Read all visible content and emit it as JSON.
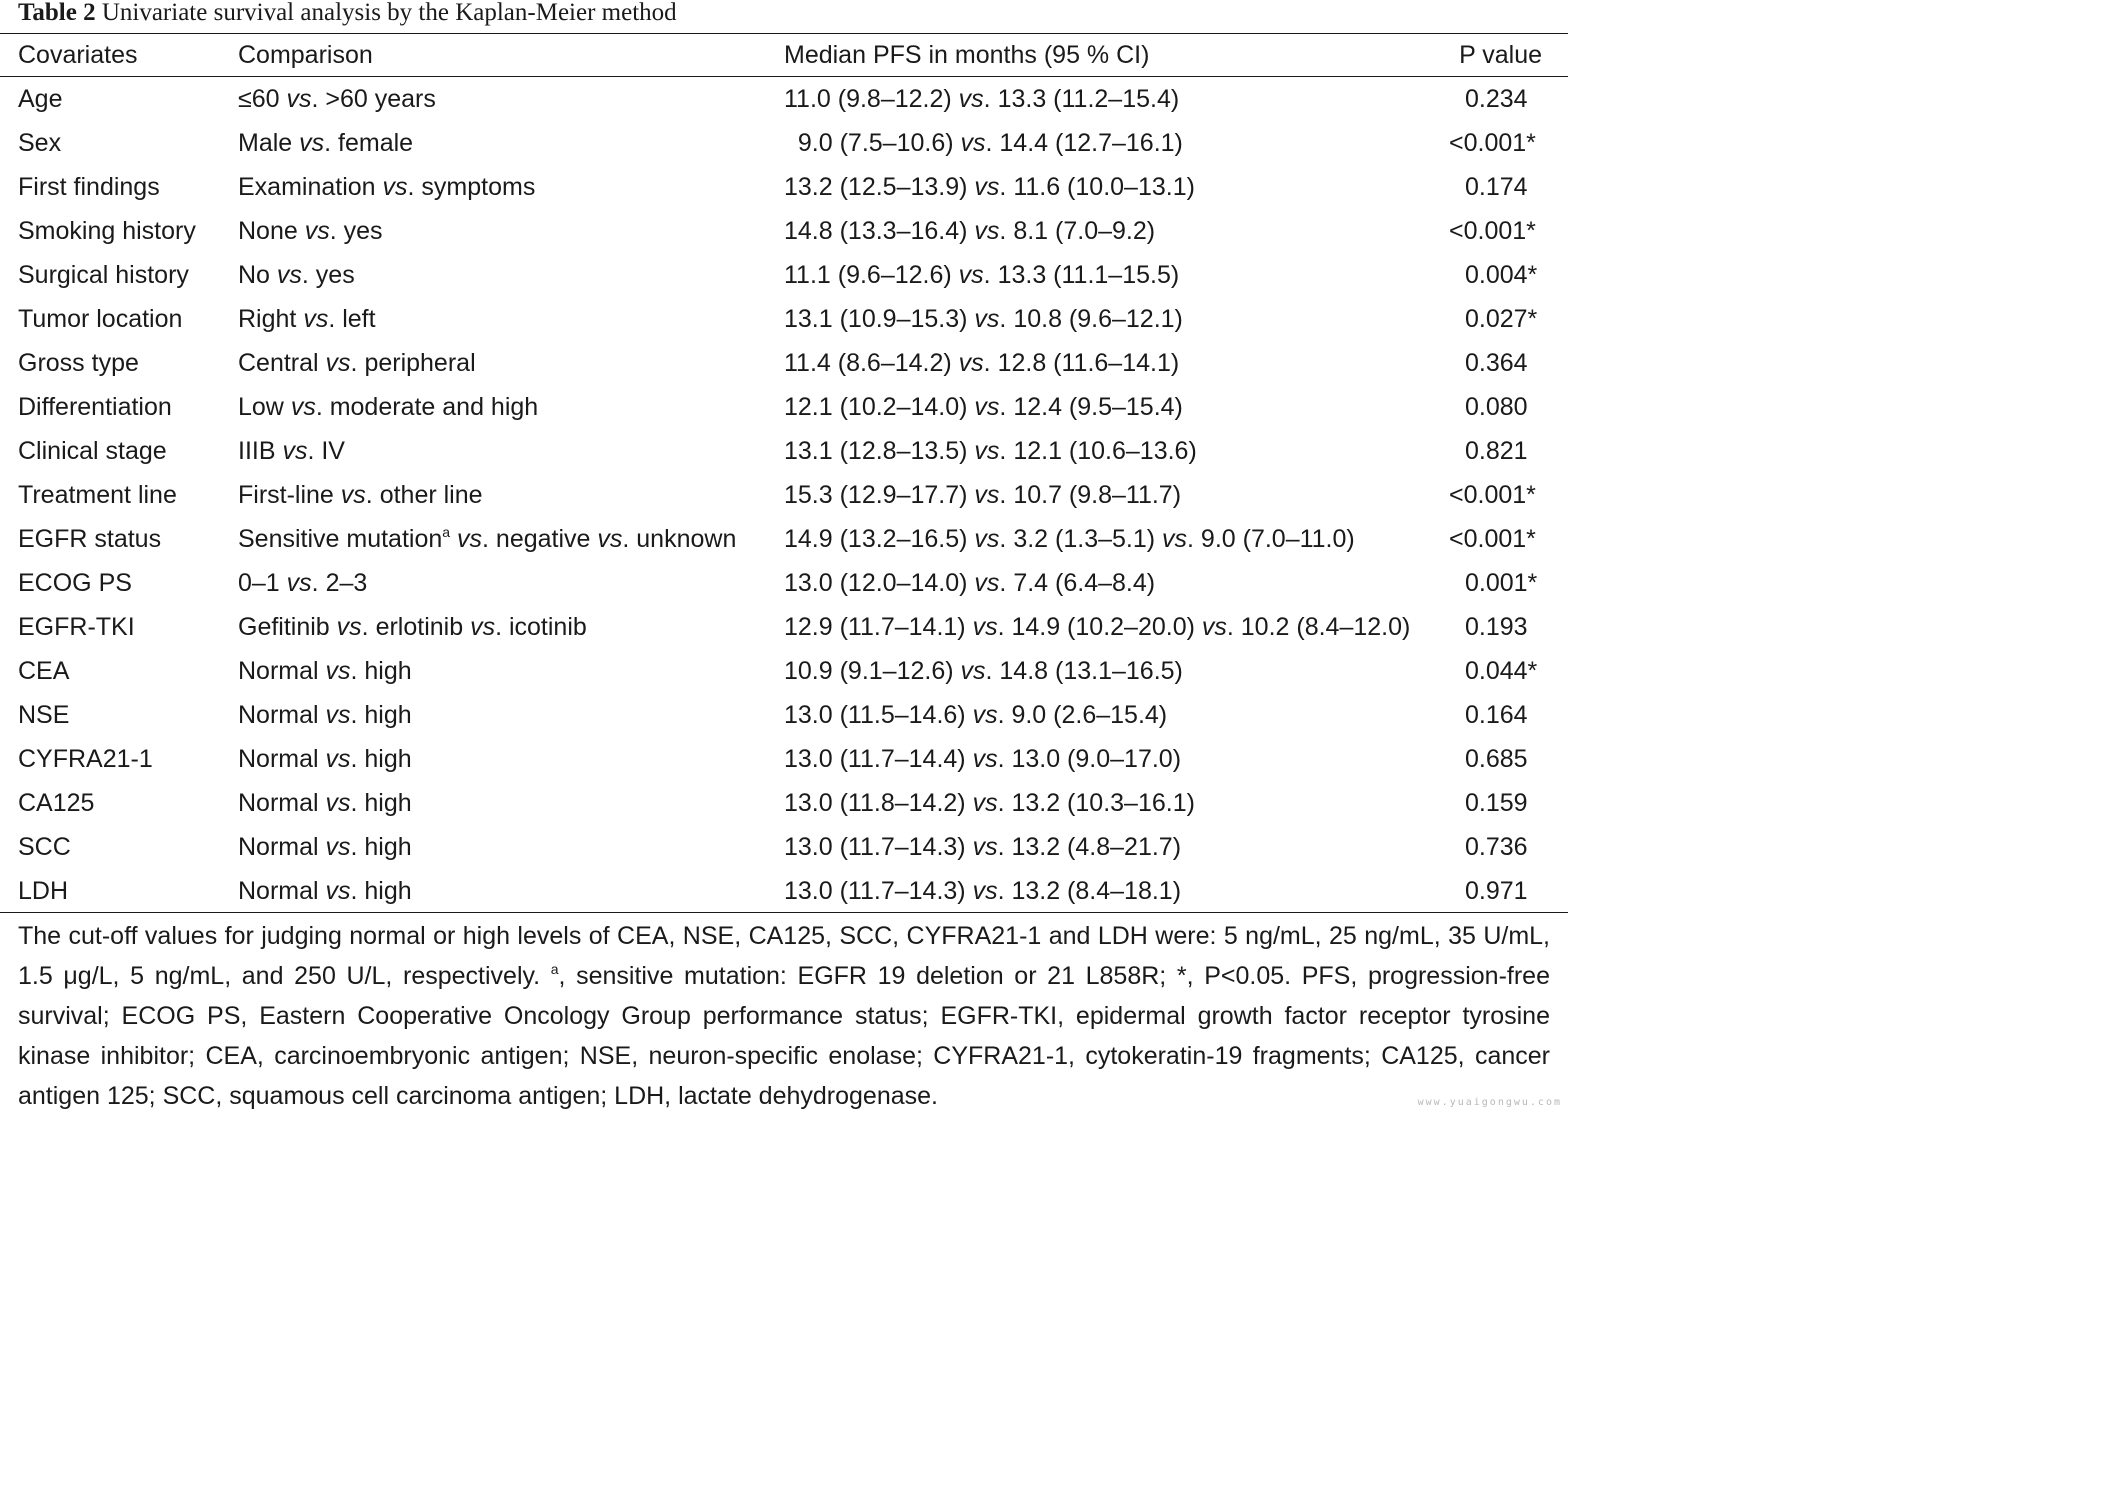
{
  "table": {
    "number": "Table 2",
    "caption": "Univariate survival analysis by the Kaplan-Meier method",
    "headers": [
      "Covariates",
      "Comparison",
      "Median PFS in months (95 % CI)",
      "P value"
    ],
    "rows": [
      {
        "covariate": "Age",
        "comparison": [
          "≤60 ",
          "vs",
          ". >60 years"
        ],
        "median": [
          "11.0 (9.8–12.2) ",
          "vs",
          ". 13.3 (11.2–15.4)"
        ],
        "p": "0.234"
      },
      {
        "covariate": "Sex",
        "comparison": [
          "Male ",
          "vs",
          ". female"
        ],
        "median": [
          "  9.0 (7.5–10.6) ",
          "vs",
          ". 14.4 (12.7–16.1)"
        ],
        "p": "<0.001*"
      },
      {
        "covariate": "First findings",
        "comparison": [
          "Examination ",
          "vs",
          ". symptoms"
        ],
        "median": [
          "13.2 (12.5–13.9) ",
          "vs",
          ". 11.6 (10.0–13.1)"
        ],
        "p": "0.174"
      },
      {
        "covariate": "Smoking history",
        "comparison": [
          "None ",
          "vs",
          ". yes"
        ],
        "median": [
          "14.8 (13.3–16.4) ",
          "vs",
          ". 8.1 (7.0–9.2)"
        ],
        "p": "<0.001*"
      },
      {
        "covariate": "Surgical history",
        "comparison": [
          "No ",
          "vs",
          ". yes"
        ],
        "median": [
          "11.1 (9.6–12.6) ",
          "vs",
          ". 13.3 (11.1–15.5)"
        ],
        "p": "0.004*"
      },
      {
        "covariate": "Tumor location",
        "comparison": [
          "Right ",
          "vs",
          ". left"
        ],
        "median": [
          "13.1 (10.9–15.3) ",
          "vs",
          ". 10.8 (9.6–12.1)"
        ],
        "p": "0.027*"
      },
      {
        "covariate": "Gross type",
        "comparison": [
          "Central ",
          "vs",
          ". peripheral"
        ],
        "median": [
          "11.4 (8.6–14.2) ",
          "vs",
          ". 12.8 (11.6–14.1)"
        ],
        "p": "0.364"
      },
      {
        "covariate": "Differentiation",
        "comparison": [
          "Low ",
          "vs",
          ". moderate and high"
        ],
        "median": [
          "12.1 (10.2–14.0) ",
          "vs",
          ". 12.4 (9.5–15.4)"
        ],
        "p": "0.080"
      },
      {
        "covariate": "Clinical stage",
        "comparison": [
          "IIIB ",
          "vs",
          ". IV"
        ],
        "median": [
          "13.1 (12.8–13.5) ",
          "vs",
          ". 12.1 (10.6–13.6)"
        ],
        "p": "0.821"
      },
      {
        "covariate": "Treatment line",
        "comparison": [
          "First-line ",
          "vs",
          ". other line"
        ],
        "median": [
          "15.3 (12.9–17.7) ",
          "vs",
          ". 10.7 (9.8–11.7)"
        ],
        "p": "<0.001*"
      },
      {
        "covariate": "EGFR status",
        "comparison": [
          "Sensitive mutation",
          "a",
          " ",
          "vs",
          ". negative ",
          "vs",
          ". unknown"
        ],
        "median": [
          "14.9 (13.2–16.5) ",
          "vs",
          ". 3.2 (1.3–5.1) ",
          "vs",
          ". 9.0 (7.0–11.0)"
        ],
        "p": "<0.001*"
      },
      {
        "covariate": "ECOG PS",
        "comparison": [
          "0–1 ",
          "vs",
          ". 2–3"
        ],
        "median": [
          "13.0 (12.0–14.0) ",
          "vs",
          ". 7.4 (6.4–8.4)"
        ],
        "p": "0.001*"
      },
      {
        "covariate": "EGFR-TKI",
        "comparison": [
          "Gefitinib ",
          "vs",
          ". erlotinib ",
          "vs",
          ". icotinib"
        ],
        "median": [
          "12.9 (11.7–14.1) ",
          "vs",
          ". 14.9 (10.2–20.0) ",
          "vs",
          ". 10.2 (8.4–12.0)"
        ],
        "p": "0.193"
      },
      {
        "covariate": "CEA",
        "comparison": [
          "Normal ",
          "vs",
          ". high"
        ],
        "median": [
          "10.9 (9.1–12.6) ",
          "vs",
          ". 14.8 (13.1–16.5)"
        ],
        "p": "0.044*"
      },
      {
        "covariate": "NSE",
        "comparison": [
          "Normal ",
          "vs",
          ". high"
        ],
        "median": [
          "13.0 (11.5–14.6) ",
          "vs",
          ". 9.0 (2.6–15.4)"
        ],
        "p": "0.164"
      },
      {
        "covariate": "CYFRA21-1",
        "comparison": [
          "Normal ",
          "vs",
          ". high"
        ],
        "median": [
          "13.0 (11.7–14.4) ",
          "vs",
          ". 13.0 (9.0–17.0)"
        ],
        "p": "0.685"
      },
      {
        "covariate": "CA125",
        "comparison": [
          "Normal ",
          "vs",
          ". high"
        ],
        "median": [
          "13.0 (11.8–14.2) ",
          "vs",
          ". 13.2 (10.3–16.1)"
        ],
        "p": "0.159"
      },
      {
        "covariate": "SCC",
        "comparison": [
          "Normal ",
          "vs",
          ". high"
        ],
        "median": [
          "13.0 (11.7–14.3) ",
          "vs",
          ". 13.2 (4.8–21.7)"
        ],
        "p": "0.736"
      },
      {
        "covariate": "LDH",
        "comparison": [
          "Normal ",
          "vs",
          ". high"
        ],
        "median": [
          "13.0 (11.7–14.3) ",
          "vs",
          ". 13.2 (8.4–18.1)"
        ],
        "p": "0.971"
      }
    ]
  },
  "footnote": {
    "part1": "The cut-off values for judging normal or high levels of CEA, NSE, CA125, SCC, CYFRA21-1 and LDH were: 5 ng/mL, 25 ng/mL, 35 U/mL, 1.5 μg/L, 5 ng/mL, and 250 U/L, respectively. ",
    "sup": "a",
    "part2": ", sensitive mutation: EGFR 19 deletion or 21 L858R; *, P<0.05. PFS, progression-free survival; ECOG PS, Eastern Cooperative Oncology Group performance status; EGFR-TKI, epidermal growth factor receptor tyrosine kinase inhibitor; CEA, carcinoembryonic antigen; NSE, neuron-specific enolase; CYFRA21-1, cytokeratin-19 fragments; CA125, cancer antigen 125; SCC, squamous cell carcinoma antigen; LDH, lactate dehydrogenase."
  },
  "watermark": "www.yuaigongwu.com"
}
